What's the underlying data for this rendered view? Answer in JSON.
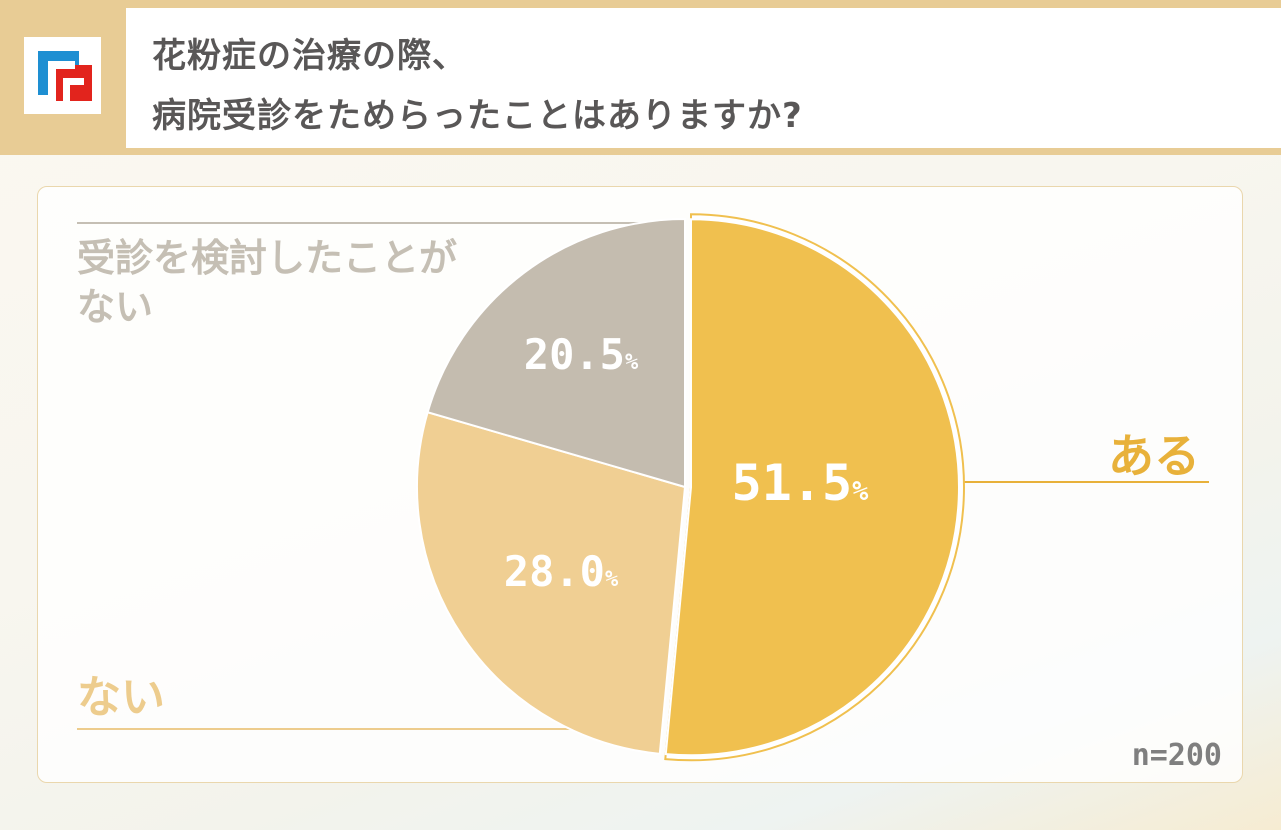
{
  "header": {
    "title_line1": "花粉症の治療の際、",
    "title_line2": "病院受診をためらったことはありますか?"
  },
  "colors": {
    "header_bg": "#e8cc95",
    "aru": "#f0c04f",
    "nai": "#f0cf93",
    "kentou_nai": "#c4bcaf",
    "aru_label": "#e8b13a",
    "nai_label": "#edcc8d",
    "kentou_label": "#c5bfb4",
    "logo_blue": "#1e8fd2",
    "logo_red": "#e2241d"
  },
  "chart_data": {
    "type": "pie",
    "sample_size_label": "n=200",
    "slices": [
      {
        "label": "ある",
        "value": 51.5,
        "value_label": "51.5",
        "color": "#f0c04f"
      },
      {
        "label": "ない",
        "value": 28.0,
        "value_label": "28.0",
        "color": "#f0cf93"
      },
      {
        "label_line1": "受診を検討したことが",
        "label_line2": "ない",
        "value": 20.5,
        "value_label": "20.5",
        "color": "#c4bcaf"
      }
    ],
    "unit": "%"
  }
}
